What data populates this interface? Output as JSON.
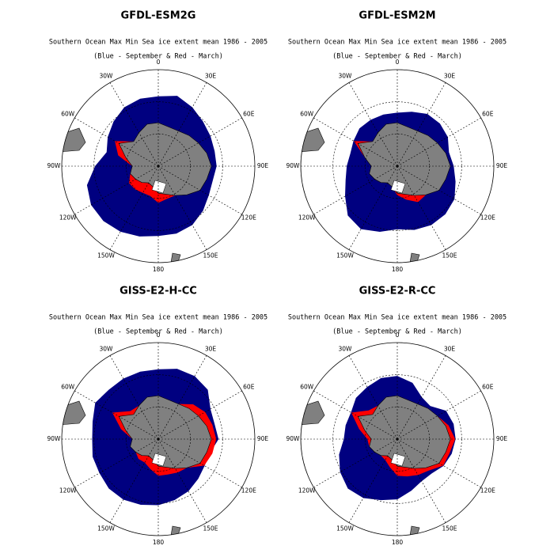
{
  "panels": [
    {
      "title": "GFDL-ESM2G",
      "subtitle": "Southern Ocean Max Min Sea ice extent mean 1986 - 2005",
      "note": "(Blue - September & Red - March)"
    },
    {
      "title": "GFDL-ESM2M",
      "subtitle": "Southern Ocean Max Min Sea ice extent mean 1986 - 2005",
      "note": "(Blue - September & Red - March)"
    },
    {
      "title": "GISS-E2-H-CC",
      "subtitle": "Southern Ocean Max Min Sea ice extent mean 1986 - 2005",
      "note": "(Blue - September & Red - March)"
    },
    {
      "title": "GISS-E2-R-CC",
      "subtitle": "Southern Ocean Max Min Sea ice extent mean 1986 - 2005",
      "note": "(Blue - September & Red - March)"
    }
  ],
  "longitude_labels": [
    "0",
    "30E",
    "60E",
    "90E",
    "120E",
    "150E",
    "180",
    "150W",
    "120W",
    "90W",
    "60W",
    "30W"
  ]
}
